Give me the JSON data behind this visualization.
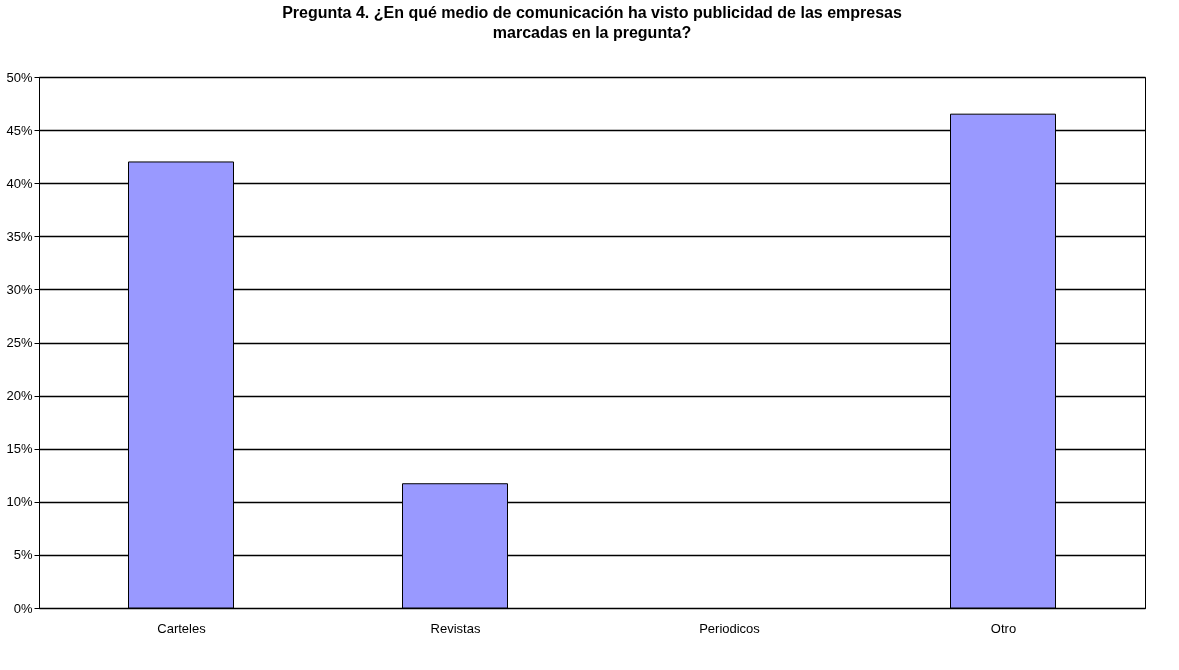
{
  "chart_data": {
    "type": "bar",
    "title": "Pregunta 4. ¿En qué medio de comunicación ha visto publicidad de las empresas marcadas en la pregunta?",
    "categories": [
      "Carteles",
      "Revistas",
      "Periodicos",
      "Otro"
    ],
    "values": [
      42,
      11.7,
      0,
      46.5
    ],
    "color": "#9999ff",
    "ylim": [
      0,
      50
    ],
    "yticks": [
      {
        "value": 0,
        "label": "0%"
      },
      {
        "value": 5,
        "label": "5%"
      },
      {
        "value": 10,
        "label": "10%"
      },
      {
        "value": 15,
        "label": "15%"
      },
      {
        "value": 20,
        "label": "20%"
      },
      {
        "value": 25,
        "label": "25%"
      },
      {
        "value": 30,
        "label": "30%"
      },
      {
        "value": 35,
        "label": "35%"
      },
      {
        "value": 40,
        "label": "40%"
      },
      {
        "value": 45,
        "label": "45%"
      },
      {
        "value": 50,
        "label": "50%"
      }
    ],
    "grid": "y"
  }
}
